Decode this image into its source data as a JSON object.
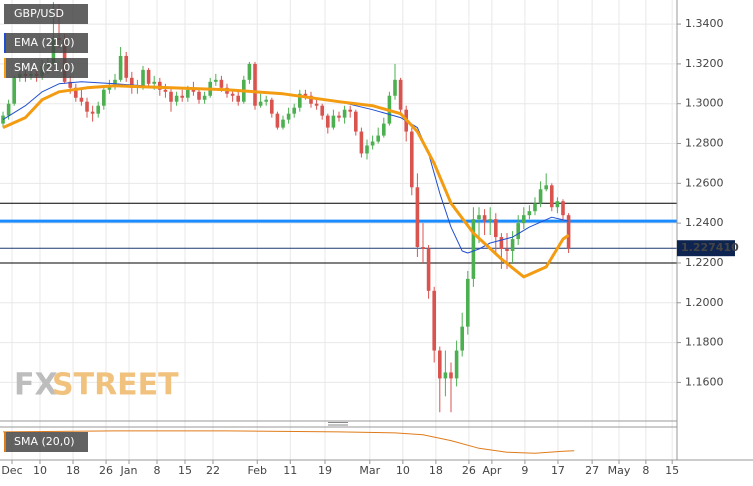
{
  "chart_data": {
    "type": "candlestick",
    "title": "GBP/USD",
    "watermark": [
      "FX",
      "STREET"
    ],
    "xlim": [
      -0.54,
      120.36
    ],
    "xticks": [
      {
        "value": 1.6,
        "label": "Dec"
      },
      {
        "value": 6.6,
        "label": "10"
      },
      {
        "value": 12.5,
        "label": "18"
      },
      {
        "value": 18.4,
        "label": "26"
      },
      {
        "value": 22.5,
        "label": "Jan"
      },
      {
        "value": 27.5,
        "label": "8"
      },
      {
        "value": 32.5,
        "label": "15"
      },
      {
        "value": 37.5,
        "label": "22"
      },
      {
        "value": 45.4,
        "label": "Feb"
      },
      {
        "value": 51.3,
        "label": "11"
      },
      {
        "value": 57.5,
        "label": "19"
      },
      {
        "value": 65.5,
        "label": "Mar"
      },
      {
        "value": 71.4,
        "label": "10"
      },
      {
        "value": 77.3,
        "label": "18"
      },
      {
        "value": 83.2,
        "label": "26"
      },
      {
        "value": 87.3,
        "label": "Apr"
      },
      {
        "value": 93.2,
        "label": "9"
      },
      {
        "value": 99.1,
        "label": "17"
      },
      {
        "value": 105.2,
        "label": "27"
      },
      {
        "value": 110,
        "label": "May"
      },
      {
        "value": 114.8,
        "label": "8"
      },
      {
        "value": 119.5,
        "label": "15"
      }
    ],
    "ylim": [
      1.1406,
      1.3521
    ],
    "yticks": [
      {
        "value": 1.34,
        "label": "1.3400"
      },
      {
        "value": 1.32,
        "label": "1.3200"
      },
      {
        "value": 1.3,
        "label": "1.3000"
      },
      {
        "value": 1.28,
        "label": "1.2800"
      },
      {
        "value": 1.26,
        "label": "1.2600"
      },
      {
        "value": 1.24,
        "label": "1.2400"
      },
      {
        "value": 1.22,
        "label": "1.2200"
      },
      {
        "value": 1.2,
        "label": "1.2000"
      },
      {
        "value": 1.18,
        "label": "1.1800"
      },
      {
        "value": 1.16,
        "label": "1.1600"
      }
    ],
    "grid": true,
    "up_color": "#4caf50",
    "down_color": "#d9534f",
    "ohlc": [
      [
        1.29,
        1.296,
        1.288,
        1.294
      ],
      [
        1.294,
        1.302,
        1.292,
        1.3
      ],
      [
        1.3,
        1.314,
        1.299,
        1.313
      ],
      [
        1.313,
        1.318,
        1.311,
        1.315
      ],
      [
        1.315,
        1.318,
        1.311,
        1.314
      ],
      [
        1.314,
        1.317,
        1.312,
        1.315
      ],
      [
        1.315,
        1.318,
        1.311,
        1.314
      ],
      [
        1.314,
        1.322,
        1.312,
        1.319
      ],
      [
        1.319,
        1.323,
        1.315,
        1.32
      ],
      [
        1.32,
        1.351,
        1.319,
        1.333
      ],
      [
        1.333,
        1.35,
        1.328,
        1.332
      ],
      [
        1.332,
        1.335,
        1.31,
        1.311
      ],
      [
        1.311,
        1.314,
        1.305,
        1.308
      ],
      [
        1.308,
        1.31,
        1.301,
        1.303
      ],
      [
        1.303,
        1.307,
        1.299,
        1.301
      ],
      [
        1.301,
        1.303,
        1.293,
        1.296
      ],
      [
        1.296,
        1.299,
        1.291,
        1.295
      ],
      [
        1.295,
        1.301,
        1.293,
        1.299
      ],
      [
        1.299,
        1.309,
        1.297,
        1.307
      ],
      [
        1.307,
        1.312,
        1.305,
        1.309
      ],
      [
        1.309,
        1.315,
        1.307,
        1.312
      ],
      [
        1.312,
        1.3285,
        1.311,
        1.324
      ],
      [
        1.324,
        1.326,
        1.311,
        1.313
      ],
      [
        1.313,
        1.316,
        1.305,
        1.308
      ],
      [
        1.308,
        1.312,
        1.305,
        1.309
      ],
      [
        1.309,
        1.319,
        1.307,
        1.317
      ],
      [
        1.317,
        1.318,
        1.308,
        1.31
      ],
      [
        1.31,
        1.314,
        1.307,
        1.311
      ],
      [
        1.311,
        1.313,
        1.304,
        1.307
      ],
      [
        1.307,
        1.31,
        1.303,
        1.306
      ],
      [
        1.306,
        1.308,
        1.296,
        1.301
      ],
      [
        1.301,
        1.306,
        1.299,
        1.304
      ],
      [
        1.304,
        1.307,
        1.301,
        1.303
      ],
      [
        1.303,
        1.309,
        1.301,
        1.307
      ],
      [
        1.307,
        1.311,
        1.304,
        1.306
      ],
      [
        1.306,
        1.308,
        1.3,
        1.302
      ],
      [
        1.302,
        1.306,
        1.3,
        1.304
      ],
      [
        1.304,
        1.313,
        1.303,
        1.311
      ],
      [
        1.311,
        1.315,
        1.309,
        1.312
      ],
      [
        1.312,
        1.314,
        1.306,
        1.308
      ],
      [
        1.308,
        1.31,
        1.303,
        1.305
      ],
      [
        1.305,
        1.307,
        1.301,
        1.304
      ],
      [
        1.304,
        1.306,
        1.299,
        1.301
      ],
      [
        1.301,
        1.314,
        1.3,
        1.312
      ],
      [
        1.312,
        1.321,
        1.31,
        1.32
      ],
      [
        1.32,
        1.321,
        1.297,
        1.299
      ],
      [
        1.299,
        1.305,
        1.298,
        1.301
      ],
      [
        1.301,
        1.304,
        1.299,
        1.302
      ],
      [
        1.302,
        1.303,
        1.293,
        1.295
      ],
      [
        1.295,
        1.296,
        1.287,
        1.288
      ],
      [
        1.288,
        1.294,
        1.287,
        1.292
      ],
      [
        1.292,
        1.298,
        1.29,
        1.295
      ],
      [
        1.295,
        1.3,
        1.293,
        1.298
      ],
      [
        1.298,
        1.307,
        1.296,
        1.305
      ],
      [
        1.305,
        1.307,
        1.302,
        1.304
      ],
      [
        1.304,
        1.306,
        1.298,
        1.3
      ],
      [
        1.3,
        1.302,
        1.297,
        1.299
      ],
      [
        1.299,
        1.3,
        1.292,
        1.294
      ],
      [
        1.294,
        1.295,
        1.285,
        1.288
      ],
      [
        1.288,
        1.297,
        1.287,
        1.294
      ],
      [
        1.294,
        1.296,
        1.291,
        1.293
      ],
      [
        1.293,
        1.299,
        1.29,
        1.297
      ],
      [
        1.297,
        1.299,
        1.293,
        1.296
      ],
      [
        1.296,
        1.297,
        1.284,
        1.286
      ],
      [
        1.286,
        1.288,
        1.273,
        1.275
      ],
      [
        1.275,
        1.282,
        1.272,
        1.279
      ],
      [
        1.279,
        1.284,
        1.277,
        1.281
      ],
      [
        1.281,
        1.288,
        1.28,
        1.284
      ],
      [
        1.284,
        1.293,
        1.283,
        1.29
      ],
      [
        1.29,
        1.306,
        1.289,
        1.304
      ],
      [
        1.304,
        1.32,
        1.302,
        1.312
      ],
      [
        1.312,
        1.313,
        1.295,
        1.297
      ],
      [
        1.297,
        1.299,
        1.281,
        1.286
      ],
      [
        1.286,
        1.288,
        1.254,
        1.258
      ],
      [
        1.258,
        1.265,
        1.223,
        1.228
      ],
      [
        1.228,
        1.24,
        1.22,
        1.227
      ],
      [
        1.227,
        1.229,
        1.202,
        1.206
      ],
      [
        1.206,
        1.208,
        1.17,
        1.176
      ],
      [
        1.176,
        1.178,
        1.145,
        1.162
      ],
      [
        1.162,
        1.176,
        1.153,
        1.165
      ],
      [
        1.165,
        1.17,
        1.145,
        1.162
      ],
      [
        1.162,
        1.181,
        1.158,
        1.176
      ],
      [
        1.176,
        1.195,
        1.173,
        1.188
      ],
      [
        1.188,
        1.216,
        1.184,
        1.212
      ],
      [
        1.212,
        1.248,
        1.208,
        1.242
      ],
      [
        1.242,
        1.248,
        1.23,
        1.244
      ],
      [
        1.244,
        1.247,
        1.234,
        1.241
      ],
      [
        1.241,
        1.248,
        1.234,
        1.242
      ],
      [
        1.242,
        1.245,
        1.225,
        1.233
      ],
      [
        1.233,
        1.235,
        1.217,
        1.227
      ],
      [
        1.227,
        1.235,
        1.217,
        1.226
      ],
      [
        1.226,
        1.236,
        1.22,
        1.232
      ],
      [
        1.232,
        1.244,
        1.229,
        1.24
      ],
      [
        1.24,
        1.248,
        1.237,
        1.244
      ],
      [
        1.244,
        1.249,
        1.242,
        1.246
      ],
      [
        1.246,
        1.253,
        1.244,
        1.25
      ],
      [
        1.25,
        1.261,
        1.248,
        1.257
      ],
      [
        1.257,
        1.265,
        1.256,
        1.259
      ],
      [
        1.259,
        1.26,
        1.246,
        1.248
      ],
      [
        1.248,
        1.253,
        1.245,
        1.251
      ],
      [
        1.251,
        1.252,
        1.241,
        1.244
      ],
      [
        1.244,
        1.245,
        1.225,
        1.2274
      ]
    ],
    "series": [
      {
        "name": "EMA (21,0)",
        "color": "#1f4fd1",
        "width": 1,
        "x": [
          0,
          4,
          7,
          10,
          14,
          20,
          25,
          30,
          40,
          50,
          60,
          66,
          71,
          74,
          76,
          78,
          80,
          82,
          83,
          85,
          87,
          91,
          94,
          98,
          101
        ],
        "values": [
          1.292,
          1.299,
          1.306,
          1.31,
          1.311,
          1.31,
          1.309,
          1.308,
          1.307,
          1.305,
          1.301,
          1.297,
          1.293,
          1.288,
          1.275,
          1.255,
          1.238,
          1.226,
          1.225,
          1.227,
          1.23,
          1.233,
          1.238,
          1.243,
          1.241
        ]
      },
      {
        "name": "SMA (21,0)",
        "color": "#f39c12",
        "width": 3,
        "x": [
          0,
          4,
          7,
          10,
          15,
          20,
          30,
          40,
          50,
          60,
          66,
          71,
          74,
          77,
          80,
          84,
          89,
          93,
          97,
          100,
          101
        ],
        "values": [
          1.288,
          1.293,
          1.302,
          1.306,
          1.308,
          1.309,
          1.308,
          1.307,
          1.305,
          1.301,
          1.299,
          1.295,
          1.286,
          1.27,
          1.25,
          1.235,
          1.222,
          1.213,
          1.218,
          1.232,
          1.234
        ]
      }
    ],
    "levels": [
      {
        "value": 1.25,
        "color": "#000000",
        "width": 1
      },
      {
        "value": 1.241,
        "color": "#1a8cff",
        "width": 3
      },
      {
        "value": 1.2274,
        "color": "#1f3a70",
        "width": 1
      },
      {
        "value": 1.22,
        "color": "#000000",
        "width": 1
      }
    ],
    "last_price": {
      "value": 1.22741,
      "label": "1.227410"
    },
    "indicator": {
      "name": "SMA (20,0)",
      "color": "#e07b1a",
      "ylim": [
        1.17,
        1.32
      ],
      "x": [
        0,
        20,
        40,
        60,
        70,
        75,
        80,
        85,
        90,
        95,
        100,
        102
      ],
      "values": [
        1.305,
        1.31,
        1.31,
        1.305,
        1.3,
        1.29,
        1.26,
        1.22,
        1.2,
        1.195,
        1.205,
        1.207
      ]
    }
  }
}
